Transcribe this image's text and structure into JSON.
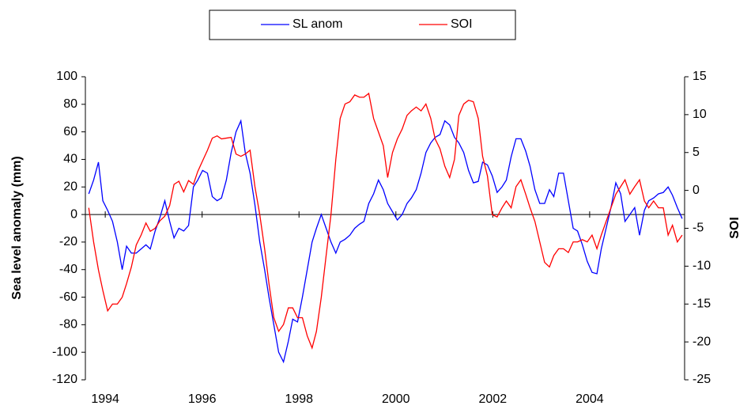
{
  "chart_data": {
    "type": "line",
    "y_label": "Sea level anomaly (mm)",
    "y2_label": "SOI",
    "xlim": [
      1993.59,
      2005.96
    ],
    "xticks": [
      1994,
      1996,
      1998,
      2000,
      2002,
      2004
    ],
    "ylim": [
      -120,
      100
    ],
    "yticks": [
      -120,
      -100,
      -80,
      -60,
      -40,
      -20,
      0,
      20,
      40,
      60,
      80,
      100
    ],
    "y2lim": [
      -25,
      15
    ],
    "y2ticks": [
      -25,
      -20,
      -15,
      -10,
      -5,
      0,
      5,
      10,
      15
    ],
    "x": [
      1993.66,
      1993.76,
      1993.86,
      1993.95,
      1994.05,
      1994.15,
      1994.25,
      1994.35,
      1994.44,
      1994.54,
      1994.64,
      1994.74,
      1994.84,
      1994.93,
      1995.03,
      1995.13,
      1995.23,
      1995.33,
      1995.42,
      1995.52,
      1995.62,
      1995.72,
      1995.82,
      1995.91,
      1996.01,
      1996.11,
      1996.21,
      1996.31,
      1996.4,
      1996.5,
      1996.6,
      1996.7,
      1996.8,
      1996.89,
      1996.99,
      1997.09,
      1997.19,
      1997.29,
      1997.38,
      1997.48,
      1997.58,
      1997.68,
      1997.78,
      1997.87,
      1997.97,
      1998.07,
      1998.17,
      1998.27,
      1998.36,
      1998.46,
      1998.56,
      1998.66,
      1998.76,
      1998.85,
      1998.95,
      1999.05,
      1999.15,
      1999.25,
      1999.34,
      1999.44,
      1999.54,
      1999.64,
      1999.74,
      1999.83,
      1999.93,
      2000.03,
      2000.13,
      2000.23,
      2000.32,
      2000.42,
      2000.52,
      2000.62,
      2000.72,
      2000.81,
      2000.91,
      2001.01,
      2001.11,
      2001.21,
      2001.3,
      2001.4,
      2001.5,
      2001.6,
      2001.7,
      2001.79,
      2001.89,
      2001.99,
      2002.09,
      2002.19,
      2002.28,
      2002.38,
      2002.48,
      2002.58,
      2002.68,
      2002.77,
      2002.87,
      2002.97,
      2003.07,
      2003.17,
      2003.26,
      2003.36,
      2003.46,
      2003.56,
      2003.66,
      2003.75,
      2003.85,
      2003.95,
      2004.05,
      2004.15,
      2004.24,
      2004.34,
      2004.44,
      2004.54,
      2004.64,
      2004.73,
      2004.83,
      2004.93,
      2005.03,
      2005.13,
      2005.22,
      2005.32,
      2005.42,
      2005.52,
      2005.62,
      2005.71,
      2005.81,
      2005.91
    ],
    "series": [
      {
        "name": "SL anom",
        "color": "#0000ff",
        "axis": "y",
        "values": [
          15,
          25,
          38,
          10,
          3,
          -5,
          -20,
          -40,
          -23,
          -28,
          -28,
          -25,
          -22,
          -25,
          -12,
          -2,
          10,
          -5,
          -17,
          -10,
          -12,
          -8,
          20,
          25,
          32,
          30,
          13,
          10,
          12,
          25,
          45,
          60,
          68,
          45,
          30,
          7,
          -20,
          -40,
          -60,
          -80,
          -100,
          -107,
          -92,
          -76,
          -78,
          -60,
          -40,
          -20,
          -10,
          0,
          -10,
          -20,
          -28,
          -20,
          -18,
          -15,
          -10,
          -7,
          -5,
          8,
          15,
          25,
          18,
          8,
          2,
          -4,
          0,
          8,
          12,
          18,
          30,
          45,
          52,
          56,
          58,
          68,
          65,
          56,
          52,
          45,
          32,
          23,
          24,
          38,
          36,
          28,
          16,
          20,
          25,
          42,
          55,
          55,
          46,
          35,
          18,
          8,
          8,
          18,
          13,
          30,
          30,
          10,
          -10,
          -12,
          -22,
          -34,
          -42,
          -43,
          -25,
          -10,
          5,
          23,
          15,
          -5,
          0,
          5,
          -15,
          3,
          10,
          12,
          15,
          16,
          20,
          14,
          5,
          -3
        ]
      },
      {
        "name": "SOI",
        "color": "#ff0000",
        "axis": "y2",
        "values": [
          -2.3,
          -6.8,
          -10.5,
          -13.2,
          -15.9,
          -15,
          -15,
          -14.1,
          -12.3,
          -10.1,
          -7.2,
          -5.9,
          -4.3,
          -5.4,
          -5,
          -4,
          -3.4,
          -2,
          0.8,
          1.2,
          -0.2,
          1.3,
          0.8,
          2.5,
          3.9,
          5.3,
          6.9,
          7.2,
          6.8,
          6.9,
          7,
          4.8,
          4.5,
          4.8,
          5.3,
          0.5,
          -3.2,
          -7.7,
          -12.3,
          -16.8,
          -18.6,
          -17.7,
          -15.5,
          -15.5,
          -16.8,
          -16.8,
          -19.2,
          -20.8,
          -18.6,
          -14.1,
          -8.6,
          -3.2,
          4.1,
          9.5,
          11.4,
          11.7,
          12.6,
          12.3,
          12.3,
          12.8,
          9.5,
          7.7,
          5.9,
          1.7,
          5,
          6.8,
          8.1,
          9.9,
          10.5,
          11,
          10.5,
          11.4,
          9.5,
          6.8,
          5.5,
          3.2,
          1.7,
          4.1,
          9.9,
          11.4,
          11.9,
          11.7,
          9.5,
          4.5,
          1.9,
          -3.2,
          -3.5,
          -2.3,
          -1.4,
          -2.3,
          0.5,
          1.4,
          -0.5,
          -2.3,
          -4.1,
          -6.8,
          -9.5,
          -10.1,
          -8.6,
          -7.7,
          -7.7,
          -8.2,
          -6.8,
          -6.8,
          -6.5,
          -6.8,
          -5.9,
          -7.7,
          -5.9,
          -4.1,
          -2.3,
          -0.5,
          0.5,
          1.4,
          -0.5,
          0.5,
          1.4,
          -1.4,
          -2.3,
          -1.4,
          -2.3,
          -2.3,
          -5.9,
          -4.6,
          -6.8,
          -5.9
        ]
      }
    ]
  }
}
